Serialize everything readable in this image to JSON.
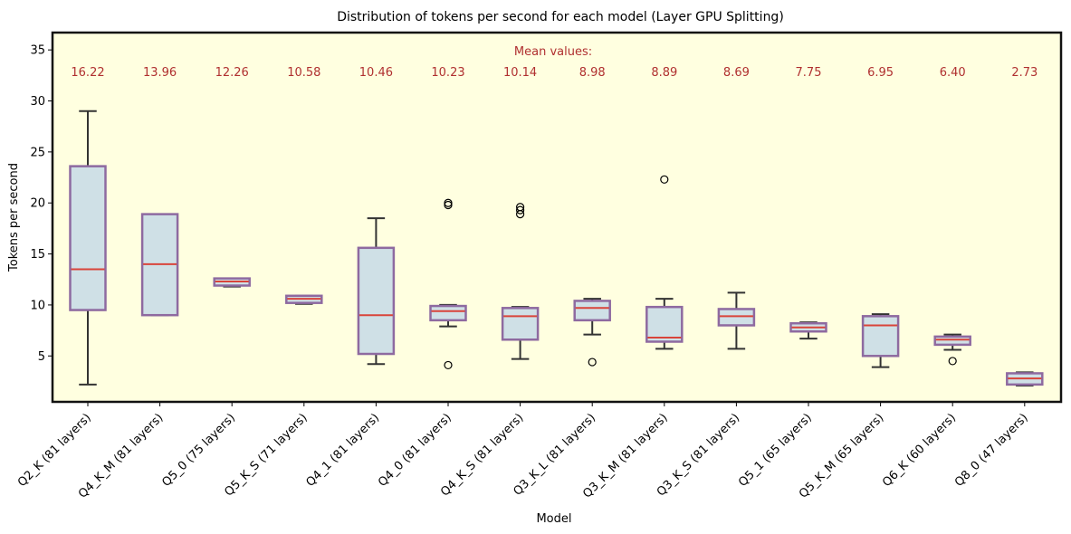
{
  "chart_data": {
    "type": "box",
    "title": "Distribution of tokens per second for each model (Layer GPU Splitting)",
    "xlabel": "Model",
    "ylabel": "Tokens per second",
    "ylim": [
      0.5,
      36.7
    ],
    "yticks": [
      5,
      10,
      15,
      20,
      25,
      30,
      35
    ],
    "grid": false,
    "mean_header": "Mean values:",
    "colors": {
      "background": "#ffffe0",
      "box_fill": "#cfe0e6",
      "box_edge": "#8e6aa0",
      "median": "#d9443a",
      "whisker": "#333333",
      "mean_text": "#b03030",
      "frame": "#111111"
    },
    "categories": [
      "Q2_K (81 layers)",
      "Q4_K_M (81 layers)",
      "Q5_0 (75 layers)",
      "Q5_K_S (71 layers)",
      "Q4_1 (81 layers)",
      "Q4_0 (81 layers)",
      "Q4_K_S (81 layers)",
      "Q3_K_L (81 layers)",
      "Q3_K_M (81 layers)",
      "Q3_K_S (81 layers)",
      "Q5_1 (65 layers)",
      "Q5_K_M (65 layers)",
      "Q6_K (60 layers)",
      "Q8_0 (47 layers)"
    ],
    "means": [
      "16.22",
      "13.96",
      "12.26",
      "10.58",
      "10.46",
      "10.23",
      "10.14",
      "8.98",
      "8.89",
      "8.69",
      "7.75",
      "6.95",
      "6.40",
      "2.73"
    ],
    "boxes": [
      {
        "whislo": 2.2,
        "q1": 9.5,
        "med": 13.5,
        "q3": 23.6,
        "whishi": 29.0,
        "fliers": []
      },
      {
        "whislo": 9.0,
        "q1": 9.0,
        "med": 14.0,
        "q3": 18.9,
        "whishi": 18.9,
        "fliers": []
      },
      {
        "whislo": 11.8,
        "q1": 11.9,
        "med": 12.3,
        "q3": 12.6,
        "whishi": 12.6,
        "fliers": []
      },
      {
        "whislo": 10.1,
        "q1": 10.2,
        "med": 10.6,
        "q3": 10.9,
        "whishi": 10.9,
        "fliers": []
      },
      {
        "whislo": 4.2,
        "q1": 5.2,
        "med": 9.0,
        "q3": 15.6,
        "whishi": 18.5,
        "fliers": []
      },
      {
        "whislo": 7.9,
        "q1": 8.5,
        "med": 9.4,
        "q3": 9.9,
        "whishi": 10.0,
        "fliers": [
          4.1,
          19.8,
          20.0
        ]
      },
      {
        "whislo": 4.7,
        "q1": 6.6,
        "med": 8.9,
        "q3": 9.7,
        "whishi": 9.8,
        "fliers": [
          18.9,
          19.3,
          19.6
        ]
      },
      {
        "whislo": 7.1,
        "q1": 8.5,
        "med": 9.7,
        "q3": 10.4,
        "whishi": 10.6,
        "fliers": [
          4.4
        ]
      },
      {
        "whislo": 5.7,
        "q1": 6.4,
        "med": 6.8,
        "q3": 9.8,
        "whishi": 10.6,
        "fliers": [
          22.3
        ]
      },
      {
        "whislo": 5.7,
        "q1": 8.0,
        "med": 8.9,
        "q3": 9.6,
        "whishi": 11.2,
        "fliers": []
      },
      {
        "whislo": 6.7,
        "q1": 7.4,
        "med": 7.8,
        "q3": 8.2,
        "whishi": 8.3,
        "fliers": []
      },
      {
        "whislo": 3.9,
        "q1": 5.0,
        "med": 8.0,
        "q3": 8.9,
        "whishi": 9.1,
        "fliers": []
      },
      {
        "whislo": 5.6,
        "q1": 6.1,
        "med": 6.6,
        "q3": 6.9,
        "whishi": 7.1,
        "fliers": [
          4.5
        ]
      },
      {
        "whislo": 2.1,
        "q1": 2.2,
        "med": 2.8,
        "q3": 3.3,
        "whishi": 3.4,
        "fliers": []
      }
    ]
  }
}
